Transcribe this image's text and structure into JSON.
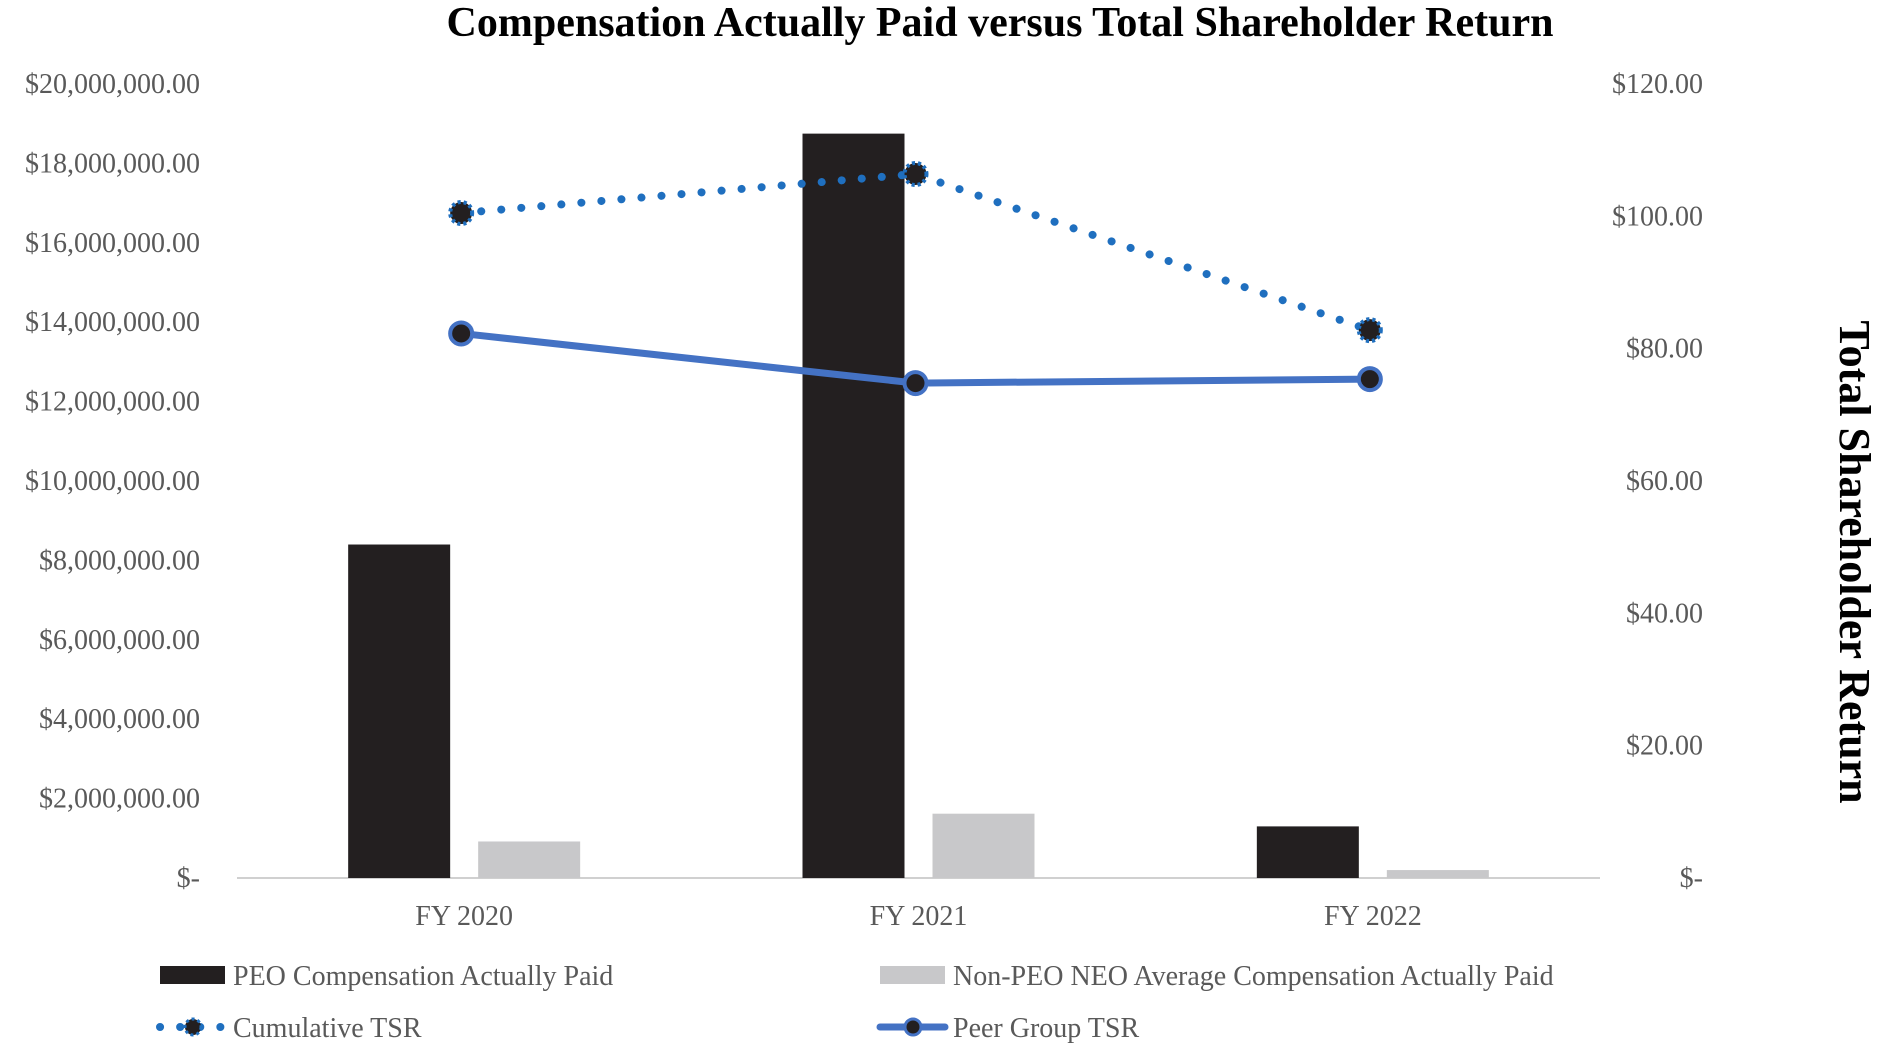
{
  "chart_data": {
    "type": "bar",
    "title": "Compensation Actually Paid versus Total Shareholder Return",
    "xlabel": "",
    "ylabel_left": "",
    "ylabel_right": "Total Shareholder Return",
    "categories": [
      "FY 2020",
      "FY 2021",
      "FY 2022"
    ],
    "left_axis": {
      "ylim": [
        0,
        20000000
      ],
      "ticks": [
        0,
        2000000,
        4000000,
        6000000,
        8000000,
        10000000,
        12000000,
        14000000,
        16000000,
        18000000,
        20000000
      ],
      "tick_labels": [
        "$-",
        "$2,000,000.00",
        "$4,000,000.00",
        "$6,000,000.00",
        "$8,000,000.00",
        "$10,000,000.00",
        "$12,000,000.00",
        "$14,000,000.00",
        "$16,000,000.00",
        "$18,000,000.00",
        "$20,000,000.00"
      ]
    },
    "right_axis": {
      "ylim": [
        0,
        120
      ],
      "ticks": [
        0,
        20,
        40,
        60,
        80,
        100,
        120
      ],
      "tick_labels": [
        "$-",
        "$20.00",
        "$40.00",
        "$60.00",
        "$80.00",
        "$100.00",
        "$120.00"
      ]
    },
    "series": [
      {
        "name": "PEO Compensation Actually Paid",
        "type": "bar",
        "axis": "left",
        "color": "#231f20",
        "values": [
          8400000,
          18750000,
          1300000
        ]
      },
      {
        "name": "Non-PEO NEO Average Compensation Actually Paid",
        "type": "bar",
        "axis": "left",
        "color": "#c8c8ca",
        "values": [
          920000,
          1620000,
          200000
        ]
      },
      {
        "name": "Cumulative TSR",
        "type": "line",
        "style": "dotted",
        "axis": "right",
        "color": "#1f6fbf",
        "marker_color": "#231f20",
        "values": [
          100.5,
          106.4,
          82.8
        ]
      },
      {
        "name": "Peer Group TSR",
        "type": "line",
        "style": "solid",
        "axis": "right",
        "color": "#4472c4",
        "marker_color": "#231f20",
        "values": [
          82.3,
          74.8,
          75.4
        ]
      }
    ],
    "legend": {
      "position": "bottom",
      "items": [
        "PEO Compensation Actually Paid",
        "Non-PEO NEO Average Compensation Actually Paid",
        "Cumulative TSR",
        "Peer Group TSR"
      ]
    },
    "grid": false
  }
}
